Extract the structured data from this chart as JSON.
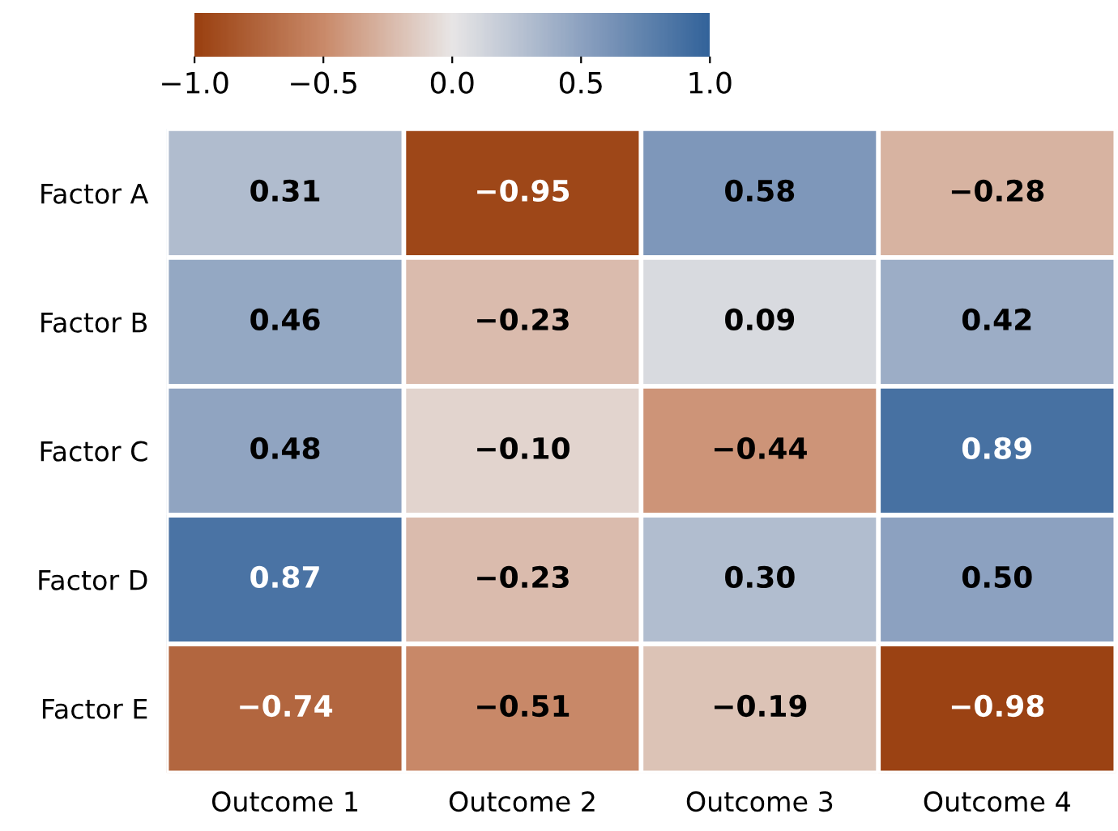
{
  "chart_data": {
    "type": "heatmap",
    "categories": [
      "Outcome 1",
      "Outcome 2",
      "Outcome 3",
      "Outcome 4"
    ],
    "y_categories": [
      "Factor A",
      "Factor B",
      "Factor C",
      "Factor D",
      "Factor E"
    ],
    "cells": [
      [
        0.31,
        -0.95,
        0.58,
        -0.28
      ],
      [
        0.46,
        -0.23,
        0.09,
        0.42
      ],
      [
        0.48,
        -0.1,
        -0.44,
        0.89
      ],
      [
        0.87,
        -0.23,
        0.3,
        0.5
      ],
      [
        -0.74,
        -0.51,
        -0.19,
        -0.98
      ]
    ],
    "cell_labels": [
      [
        "0.31",
        "−0.95",
        "0.58",
        "−0.28"
      ],
      [
        "0.46",
        "−0.23",
        "0.09",
        "0.42"
      ],
      [
        "0.48",
        "−0.10",
        "−0.44",
        "0.89"
      ],
      [
        "0.87",
        "−0.23",
        "0.30",
        "0.50"
      ],
      [
        "−0.74",
        "−0.51",
        "−0.19",
        "−0.98"
      ]
    ],
    "clim": [
      -1.0,
      1.0
    ],
    "cticks": [
      {
        "value": -1.0,
        "label": "−1.0"
      },
      {
        "value": -0.5,
        "label": "−0.5"
      },
      {
        "value": 0.0,
        "label": "0.0"
      },
      {
        "value": 0.5,
        "label": "0.5"
      },
      {
        "value": 1.0,
        "label": "1.0"
      }
    ]
  }
}
